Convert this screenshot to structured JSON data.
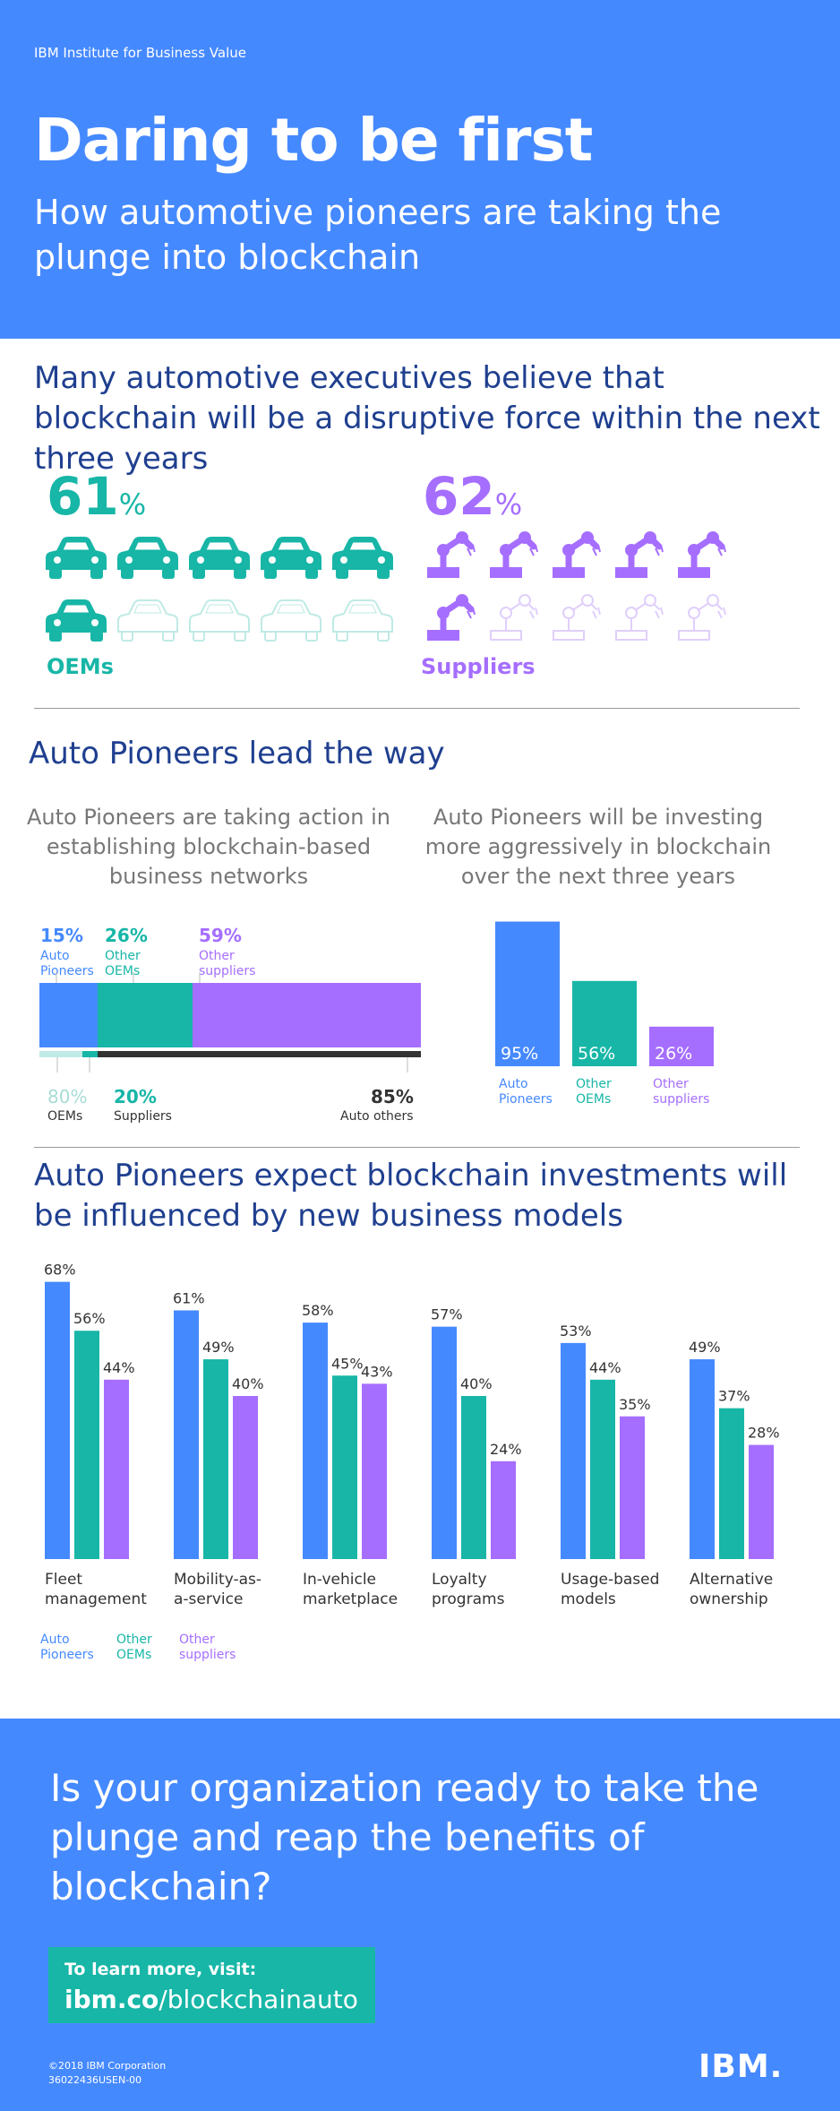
{
  "colors": {
    "blue": "#4589ff",
    "teal": "#17b6a7",
    "purple": "#a56eff",
    "navy": "#1f3f8f",
    "lightteal": "#bfeae5",
    "lightpurple": "#e0cffb",
    "dark": "#333333"
  },
  "header": {
    "org": "IBM Institute for Business Value",
    "title": "Daring to be first",
    "subtitle": "How automotive pioneers are taking the plunge into blockchain"
  },
  "section1": {
    "heading": "Many automotive executives believe that blockchain will be a disruptive force within the next three years",
    "oems": {
      "value": "61",
      "unit": "%",
      "label": "OEMs"
    },
    "suppliers": {
      "value": "62",
      "unit": "%",
      "label": "Suppliers"
    }
  },
  "section2": {
    "title": "Auto Pioneers lead the way",
    "left_heading": "Auto Pioneers are taking action in establishing blockchain-based business networks",
    "right_heading": "Auto Pioneers will be investing more aggressively in blockchain over the next three years",
    "top_labels": [
      {
        "pct": "15%",
        "line1": "Auto",
        "line2": "Pioneers"
      },
      {
        "pct": "26%",
        "line1": "Other",
        "line2": "OEMs"
      },
      {
        "pct": "59%",
        "line1": "Other",
        "line2": "suppliers"
      }
    ],
    "bottom_labels": [
      {
        "pct": "80%",
        "label": "OEMs"
      },
      {
        "pct": "20%",
        "label": "Suppliers"
      },
      {
        "pct": "85%",
        "label": "Auto others"
      }
    ]
  },
  "section3": {
    "title": "Auto Pioneers expect blockchain investments will be influenced by new business models"
  },
  "legend": [
    {
      "line1": "Auto",
      "line2": "Pioneers"
    },
    {
      "line1": "Other",
      "line2": "OEMs"
    },
    {
      "line1": "Other",
      "line2": "suppliers"
    }
  ],
  "footer": {
    "question": "Is your organization ready to take the plunge and reap the benefits of blockchain?",
    "cta_line1": "To learn more, visit:",
    "cta_bold": "ibm.co",
    "cta_rest": "/blockchainauto",
    "copyright": "©2018 IBM Corporation",
    "code": "36022436USEN-00",
    "logo": "IBM."
  },
  "chart_data": [
    {
      "type": "bar",
      "categories": [
        "Auto Pioneers",
        "Other OEMs",
        "Other suppliers"
      ],
      "values": [
        95,
        56,
        26
      ],
      "value_labels": [
        "95%",
        "56%",
        "26%"
      ],
      "ylim": [
        0,
        100
      ]
    },
    {
      "type": "bar",
      "categories": [
        "Fleet management",
        "Mobility-as-a-service",
        "In-vehicle marketplace",
        "Loyalty programs",
        "Usage-based models",
        "Alternative ownership"
      ],
      "category_lines": [
        [
          "Fleet",
          "management"
        ],
        [
          "Mobility-as-",
          "a-service"
        ],
        [
          "In-vehicle",
          "marketplace"
        ],
        [
          "Loyalty",
          "programs"
        ],
        [
          "Usage-based",
          "models"
        ],
        [
          "Alternative",
          "ownership"
        ]
      ],
      "series": [
        {
          "name": "Auto Pioneers",
          "values": [
            68,
            61,
            58,
            57,
            53,
            49
          ]
        },
        {
          "name": "Other OEMs",
          "values": [
            56,
            49,
            45,
            40,
            44,
            37
          ]
        },
        {
          "name": "Other suppliers",
          "values": [
            44,
            40,
            43,
            24,
            35,
            28
          ]
        }
      ],
      "ylim": [
        0,
        70
      ]
    }
  ]
}
